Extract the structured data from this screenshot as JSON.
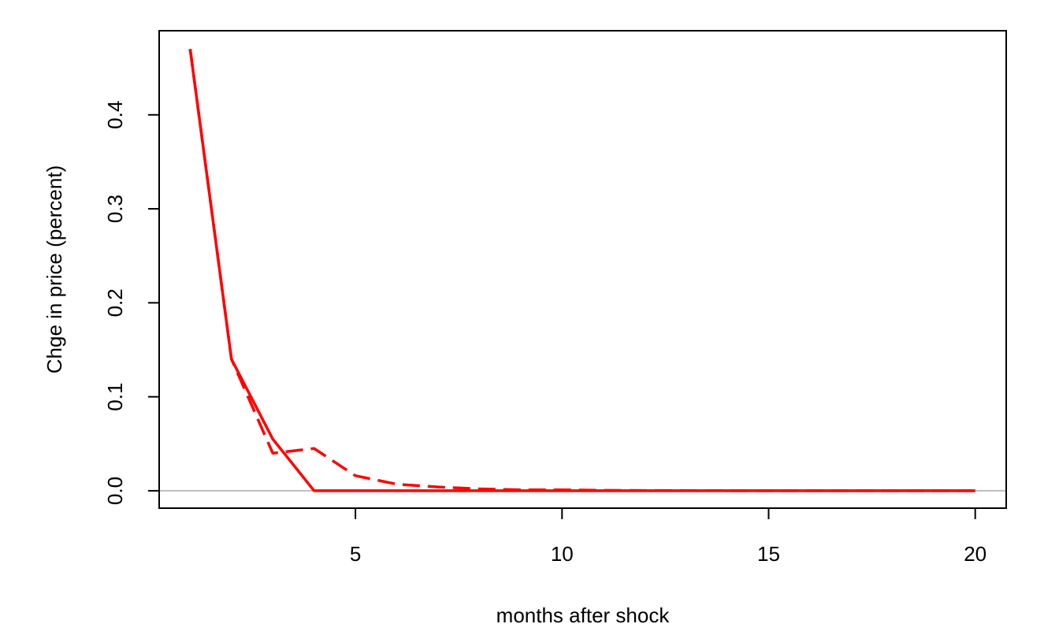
{
  "chart_data": {
    "type": "line",
    "title": "",
    "xlabel": "months after shock",
    "ylabel": "Chge in price (percent)",
    "xlim": [
      0.25,
      20.75
    ],
    "ylim": [
      -0.0185,
      0.4895
    ],
    "x_ticks": [
      5,
      10,
      15,
      20
    ],
    "x_tick_labels": [
      "5",
      "10",
      "15",
      "20"
    ],
    "y_ticks": [
      0.0,
      0.1,
      0.2,
      0.3,
      0.4
    ],
    "y_tick_labels": [
      "0.0",
      "0.1",
      "0.2",
      "0.3",
      "0.4"
    ],
    "grid": false,
    "legend": "none",
    "reference_line": {
      "y": 0,
      "color": "#bebebe"
    },
    "x": [
      1,
      2,
      3,
      4,
      5,
      6,
      7,
      8,
      9,
      10,
      11,
      12,
      13,
      14,
      15,
      16,
      17,
      18,
      19,
      20
    ],
    "series": [
      {
        "style": "solid",
        "color": "#ff0000",
        "values": [
          0.47,
          0.14,
          0.055,
          0.0,
          0.0,
          0.0,
          0.0,
          0.0,
          0.0,
          0.0,
          0.0,
          0.0,
          0.0,
          0.0,
          0.0,
          0.0,
          0.0,
          0.0,
          0.0,
          0.0
        ]
      },
      {
        "style": "dashed",
        "color": "#ff0000",
        "values": [
          0.47,
          0.14,
          0.04,
          0.045,
          0.016,
          0.007,
          0.004,
          0.002,
          0.001,
          0.001,
          0.0005,
          0.0003,
          0.0002,
          0.0001,
          0.0,
          0.0,
          0.0,
          0.0,
          0.0,
          0.0
        ]
      }
    ]
  }
}
